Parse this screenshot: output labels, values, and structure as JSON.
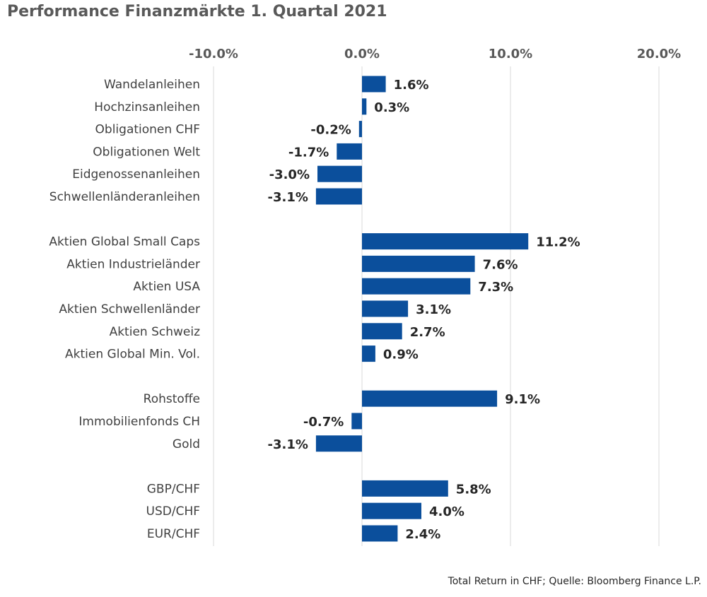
{
  "title": "Performance Finanzmärkte 1. Quartal 2021",
  "footnote": "Total Return in CHF; Quelle: Bloomberg Finance L.P.",
  "colors": {
    "bar": "#0b4f9c",
    "grid": "#d9d9d9"
  },
  "chart_data": {
    "type": "bar",
    "orientation": "horizontal",
    "title": "Performance Finanzmärkte 1. Quartal 2021",
    "xlim": [
      -10,
      20
    ],
    "x_ticks": [
      -10,
      0,
      10,
      20
    ],
    "x_tick_labels": [
      "-10.0%",
      "0.0%",
      "10.0%",
      "20.0%"
    ],
    "x_axis_position": "top",
    "grid": true,
    "groups": [
      {
        "categories": [
          "Wandelanleihen",
          "Hochzinsanleihen",
          "Obligationen CHF",
          "Obligationen Welt",
          "Eidgenossenanleihen",
          "Schwellenländeranleihen"
        ],
        "values": [
          1.6,
          0.3,
          -0.2,
          -1.7,
          -3.0,
          -3.1
        ],
        "labels": [
          "1.6%",
          "0.3%",
          "-0.2%",
          "-1.7%",
          "-3.0%",
          "-3.1%"
        ]
      },
      {
        "categories": [
          "Aktien Global Small Caps",
          "Aktien Industrieländer",
          "Aktien USA",
          "Aktien Schwellenländer",
          "Aktien Schweiz",
          "Aktien Global Min. Vol."
        ],
        "values": [
          11.2,
          7.6,
          7.3,
          3.1,
          2.7,
          0.9
        ],
        "labels": [
          "11.2%",
          "7.6%",
          "7.3%",
          "3.1%",
          "2.7%",
          "0.9%"
        ]
      },
      {
        "categories": [
          "Rohstoffe",
          "Immobilienfonds CH",
          "Gold"
        ],
        "values": [
          9.1,
          -0.7,
          -3.1
        ],
        "labels": [
          "9.1%",
          "-0.7%",
          "-3.1%"
        ]
      },
      {
        "categories": [
          "GBP/CHF",
          "USD/CHF",
          "EUR/CHF"
        ],
        "values": [
          5.8,
          4.0,
          2.4
        ],
        "labels": [
          "5.8%",
          "4.0%",
          "2.4%"
        ]
      }
    ]
  }
}
